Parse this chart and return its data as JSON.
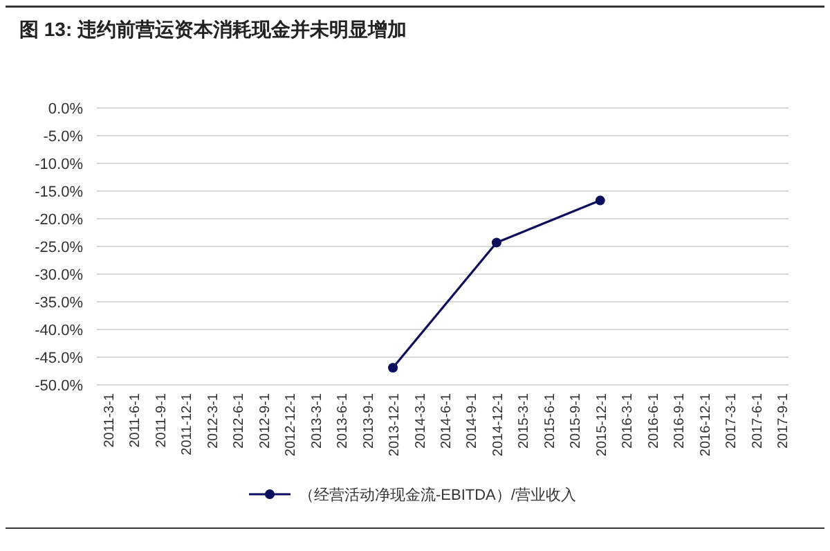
{
  "chart_data": {
    "type": "line",
    "title": "图 13: 违约前营运资本消耗现金并未明显增加",
    "categories": [
      "2011-3-1",
      "2011-6-1",
      "2011-9-1",
      "2011-12-1",
      "2012-3-1",
      "2012-6-1",
      "2012-9-1",
      "2012-12-1",
      "2013-3-1",
      "2013-6-1",
      "2013-9-1",
      "2013-12-1",
      "2014-3-1",
      "2014-6-1",
      "2014-9-1",
      "2014-12-1",
      "2015-3-1",
      "2015-6-1",
      "2015-9-1",
      "2015-12-1",
      "2016-3-1",
      "2016-6-1",
      "2016-9-1",
      "2016-12-1",
      "2017-3-1",
      "2017-6-1",
      "2017-9-1"
    ],
    "series": [
      {
        "name": "（经营活动净现金流-EBITDA）/营业收入",
        "color": "#0d0d5e",
        "values": [
          null,
          null,
          null,
          null,
          null,
          null,
          null,
          null,
          null,
          null,
          null,
          -46.9,
          null,
          null,
          null,
          -24.3,
          null,
          null,
          null,
          -16.7,
          null,
          null,
          null,
          null,
          null,
          null,
          null
        ]
      }
    ],
    "ylim": [
      -50,
      0
    ],
    "yticks": [
      {
        "value": 0,
        "label": "0.0%"
      },
      {
        "value": -5,
        "label": "-5.0%"
      },
      {
        "value": -10,
        "label": "-10.0%"
      },
      {
        "value": -15,
        "label": "-15.0%"
      },
      {
        "value": -20,
        "label": "-20.0%"
      },
      {
        "value": -25,
        "label": "-25.0%"
      },
      {
        "value": -30,
        "label": "-30.0%"
      },
      {
        "value": -35,
        "label": "-35.0%"
      },
      {
        "value": -40,
        "label": "-40.0%"
      },
      {
        "value": -45,
        "label": "-45.0%"
      },
      {
        "value": -50,
        "label": "-50.0%"
      }
    ],
    "grid": "y",
    "legend": "bottom",
    "marker": "circle",
    "line_style": "solid"
  }
}
